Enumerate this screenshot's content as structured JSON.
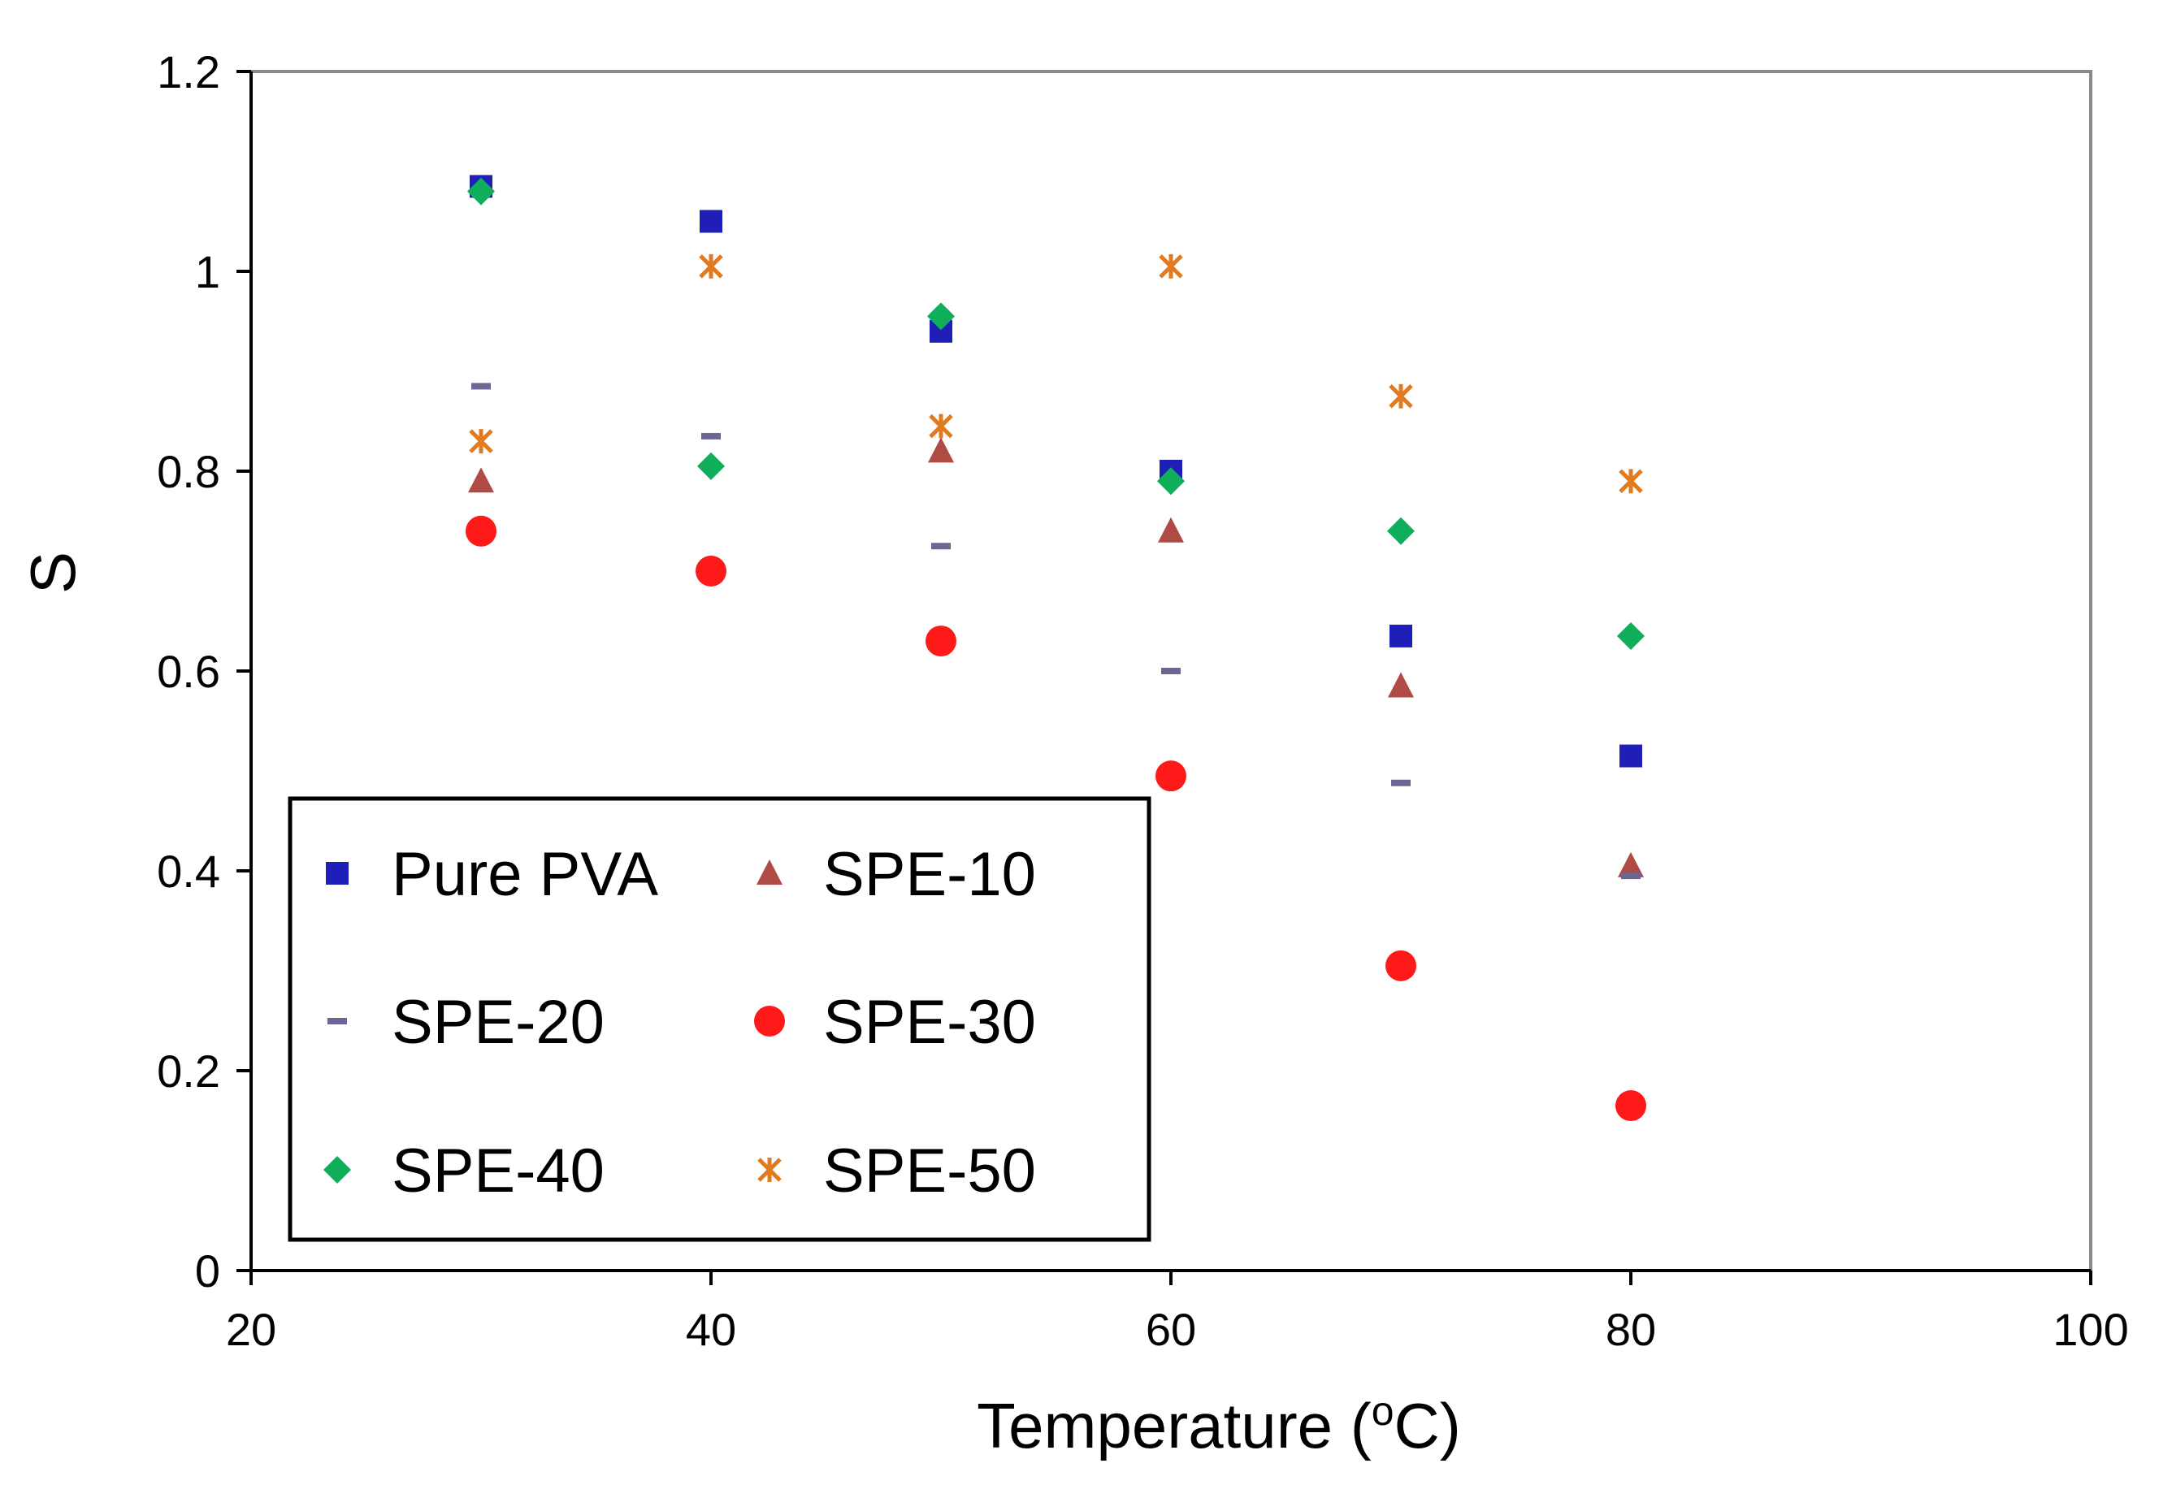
{
  "chart_data": {
    "type": "scatter",
    "title": "",
    "xlabel": "Temperature (",
    "xlabel_sup": "o",
    "xlabel_unit": "C)",
    "ylabel": "S",
    "xlim": [
      20,
      100
    ],
    "ylim": [
      0,
      1.2
    ],
    "xticks": [
      "20",
      "40",
      "60",
      "80",
      "100"
    ],
    "yticks": [
      "0",
      "0.2",
      "0.4",
      "0.6",
      "0.8",
      "1",
      "1.2"
    ],
    "grid": false,
    "legend_position": "bottom-left",
    "series": [
      {
        "name": "Pure PVA",
        "marker": "square",
        "color": "#1f1fb8",
        "x": [
          30,
          40,
          50,
          60,
          70,
          80
        ],
        "y": [
          1.085,
          1.05,
          0.94,
          0.8,
          0.635,
          0.515
        ]
      },
      {
        "name": "SPE-10",
        "marker": "triangle",
        "color": "#b04a45",
        "x": [
          30,
          50,
          60,
          70,
          80
        ],
        "y": [
          0.79,
          0.82,
          0.74,
          0.585,
          0.405
        ]
      },
      {
        "name": "SPE-20",
        "marker": "dash",
        "color": "#6d6592",
        "x": [
          30,
          40,
          50,
          60,
          70,
          80
        ],
        "y": [
          0.885,
          0.835,
          0.725,
          0.6,
          0.488,
          0.395
        ]
      },
      {
        "name": "SPE-30",
        "marker": "circle",
        "color": "#ff1a1a",
        "x": [
          30,
          40,
          50,
          60,
          70,
          80
        ],
        "y": [
          0.74,
          0.7,
          0.63,
          0.495,
          0.305,
          0.165
        ]
      },
      {
        "name": "SPE-40",
        "marker": "diamond",
        "color": "#0fae5a",
        "x": [
          30,
          40,
          50,
          60,
          70,
          80
        ],
        "y": [
          1.08,
          0.805,
          0.955,
          0.79,
          0.74,
          0.635
        ]
      },
      {
        "name": "SPE-50",
        "marker": "star",
        "color": "#e27a1f",
        "x": [
          30,
          40,
          50,
          60,
          70,
          80
        ],
        "y": [
          0.83,
          1.005,
          0.845,
          1.005,
          0.875,
          0.79
        ]
      }
    ]
  }
}
